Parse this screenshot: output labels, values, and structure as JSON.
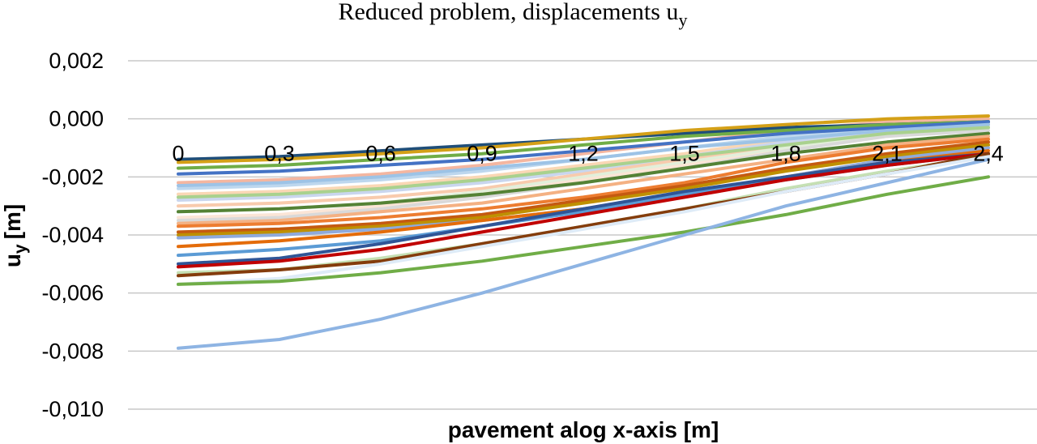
{
  "chart_data": {
    "type": "line",
    "title": "Reduced problem, displacements u",
    "title_subscript": "y",
    "xlabel": "pavement alog x-axis [m]",
    "ylabel": "u",
    "ylabel_subscript": "y",
    "ylabel_unit": "[m]",
    "categories": [
      "0",
      "0,3",
      "0,6",
      "0,9",
      "1,2",
      "1,5",
      "1,8",
      "2,1",
      "2,4"
    ],
    "ylim": [
      -0.01,
      0.002
    ],
    "yticks": [
      {
        "value": 0.002,
        "label": "0,002"
      },
      {
        "value": 0.0,
        "label": "0,000"
      },
      {
        "value": -0.002,
        "label": "-0,002"
      },
      {
        "value": -0.004,
        "label": "-0,004"
      },
      {
        "value": -0.006,
        "label": "-0,006"
      },
      {
        "value": -0.008,
        "label": "-0,008"
      },
      {
        "value": -0.01,
        "label": "-0,010"
      }
    ],
    "grid": true,
    "legend": "none",
    "series": [
      {
        "color": "#F4B6A0",
        "values": [
          -0.0022,
          -0.0021,
          -0.0019,
          -0.0016,
          -0.0012,
          -0.0008,
          -0.0004,
          -0.0001,
          0.0
        ]
      },
      {
        "color": "#FAD7B5",
        "values": [
          -0.0026,
          -0.0025,
          -0.0023,
          -0.002,
          -0.0016,
          -0.0012,
          -0.0007,
          -0.0003,
          -0.0001
        ]
      },
      {
        "color": "#C9D6EE",
        "values": [
          -0.0028,
          -0.0027,
          -0.0025,
          -0.0022,
          -0.0018,
          -0.0013,
          -0.0008,
          -0.0004,
          -0.0002
        ]
      },
      {
        "color": "#F8CBAD",
        "values": [
          -0.003,
          -0.0029,
          -0.0027,
          -0.0024,
          -0.0019,
          -0.0014,
          -0.0009,
          -0.0005,
          -0.0002
        ]
      },
      {
        "color": "#BDD7EE",
        "values": [
          -0.0024,
          -0.0023,
          -0.0021,
          -0.0018,
          -0.0014,
          -0.001,
          -0.0006,
          -0.0003,
          -0.0001
        ]
      },
      {
        "color": "#E2EFDA",
        "values": [
          -0.0032,
          -0.0031,
          -0.0029,
          -0.0025,
          -0.002,
          -0.0015,
          -0.001,
          -0.0005,
          -0.0003
        ]
      },
      {
        "color": "#FBE5D6",
        "values": [
          -0.0034,
          -0.0033,
          -0.003,
          -0.0026,
          -0.0021,
          -0.0016,
          -0.0011,
          -0.0006,
          -0.0003
        ]
      },
      {
        "color": "#D9D9D9",
        "values": [
          -0.0035,
          -0.0034,
          -0.0031,
          -0.0027,
          -0.0022,
          -0.0017,
          -0.0011,
          -0.0006,
          -0.0004
        ]
      },
      {
        "color": "#1F4E79",
        "values": [
          -0.0014,
          -0.0013,
          -0.0011,
          -0.0009,
          -0.0007,
          -0.0005,
          -0.0003,
          -0.0002,
          -0.0001
        ]
      },
      {
        "color": "#D4A017",
        "values": [
          -0.0015,
          -0.0014,
          -0.0012,
          -0.001,
          -0.0007,
          -0.0004,
          -0.0002,
          -0.0,
          0.0001
        ]
      },
      {
        "color": "#70AD47",
        "values": [
          -0.0017,
          -0.0016,
          -0.0014,
          -0.0012,
          -0.0009,
          -0.0006,
          -0.0004,
          -0.0002,
          -0.0001
        ]
      },
      {
        "color": "#4472C4",
        "values": [
          -0.0019,
          -0.0018,
          -0.0016,
          -0.0014,
          -0.0011,
          -0.0008,
          -0.0005,
          -0.0003,
          -0.0001
        ]
      },
      {
        "color": "#9DC3E6",
        "values": [
          -0.0023,
          -0.0022,
          -0.002,
          -0.0017,
          -0.0014,
          -0.001,
          -0.0007,
          -0.0004,
          -0.0002
        ]
      },
      {
        "color": "#A9D18E",
        "values": [
          -0.0027,
          -0.0026,
          -0.0024,
          -0.0021,
          -0.0017,
          -0.0013,
          -0.0009,
          -0.0005,
          -0.0003
        ]
      },
      {
        "color": "#548235",
        "values": [
          -0.0032,
          -0.0031,
          -0.0029,
          -0.0026,
          -0.0022,
          -0.0017,
          -0.0012,
          -0.0008,
          -0.0005
        ]
      },
      {
        "color": "#F4B183",
        "values": [
          -0.0036,
          -0.0035,
          -0.0032,
          -0.0029,
          -0.0024,
          -0.0019,
          -0.0014,
          -0.0009,
          -0.0006
        ]
      },
      {
        "color": "#ED7D31",
        "values": [
          -0.0037,
          -0.0036,
          -0.0034,
          -0.0031,
          -0.0027,
          -0.0022,
          -0.0015,
          -0.001,
          -0.0007
        ]
      },
      {
        "color": "#C55A11",
        "values": [
          -0.0039,
          -0.0038,
          -0.0036,
          -0.0033,
          -0.0028,
          -0.0023,
          -0.0017,
          -0.0012,
          -0.0008
        ]
      },
      {
        "color": "#BF9000",
        "values": [
          -0.004,
          -0.0039,
          -0.0037,
          -0.0034,
          -0.0029,
          -0.0024,
          -0.0018,
          -0.0013,
          -0.0009
        ]
      },
      {
        "color": "#8FAADC",
        "values": [
          -0.0041,
          -0.004,
          -0.0038,
          -0.0035,
          -0.0031,
          -0.0026,
          -0.002,
          -0.0014,
          -0.001
        ]
      },
      {
        "color": "#E46C0A",
        "values": [
          -0.0044,
          -0.0042,
          -0.0039,
          -0.0035,
          -0.0031,
          -0.0026,
          -0.002,
          -0.0015,
          -0.0011
        ]
      },
      {
        "color": "#5B9BD5",
        "values": [
          -0.0047,
          -0.0045,
          -0.0042,
          -0.0037,
          -0.0032,
          -0.0026,
          -0.0021,
          -0.0016,
          -0.0012
        ]
      },
      {
        "color": "#2F5597",
        "values": [
          -0.005,
          -0.0048,
          -0.0043,
          -0.0037,
          -0.0031,
          -0.0025,
          -0.002,
          -0.0015,
          -0.0012
        ]
      },
      {
        "color": "#C00000",
        "values": [
          -0.0051,
          -0.0049,
          -0.0045,
          -0.0039,
          -0.0033,
          -0.0027,
          -0.0021,
          -0.0016,
          -0.0012
        ]
      },
      {
        "color": "#C5E0B4",
        "values": [
          -0.0053,
          -0.0052,
          -0.0048,
          -0.0043,
          -0.0037,
          -0.0031,
          -0.0024,
          -0.0018,
          -0.0013
        ]
      },
      {
        "color": "#843C0C",
        "values": [
          -0.0054,
          -0.0052,
          -0.0049,
          -0.0043,
          -0.0037,
          -0.0031,
          -0.0025,
          -0.0019,
          -0.0012
        ]
      },
      {
        "color": "#DEEBF7",
        "values": [
          -0.0057,
          -0.0055,
          -0.005,
          -0.0044,
          -0.0038,
          -0.0032,
          -0.0025,
          -0.0019,
          -0.0013
        ]
      },
      {
        "color": "#70AD47",
        "values": [
          -0.0057,
          -0.0056,
          -0.0053,
          -0.0049,
          -0.0044,
          -0.0039,
          -0.0033,
          -0.0026,
          -0.002
        ]
      },
      {
        "color": "#8EB4E3",
        "values": [
          -0.0079,
          -0.0076,
          -0.0069,
          -0.006,
          -0.005,
          -0.004,
          -0.003,
          -0.0022,
          -0.0014
        ]
      }
    ]
  }
}
